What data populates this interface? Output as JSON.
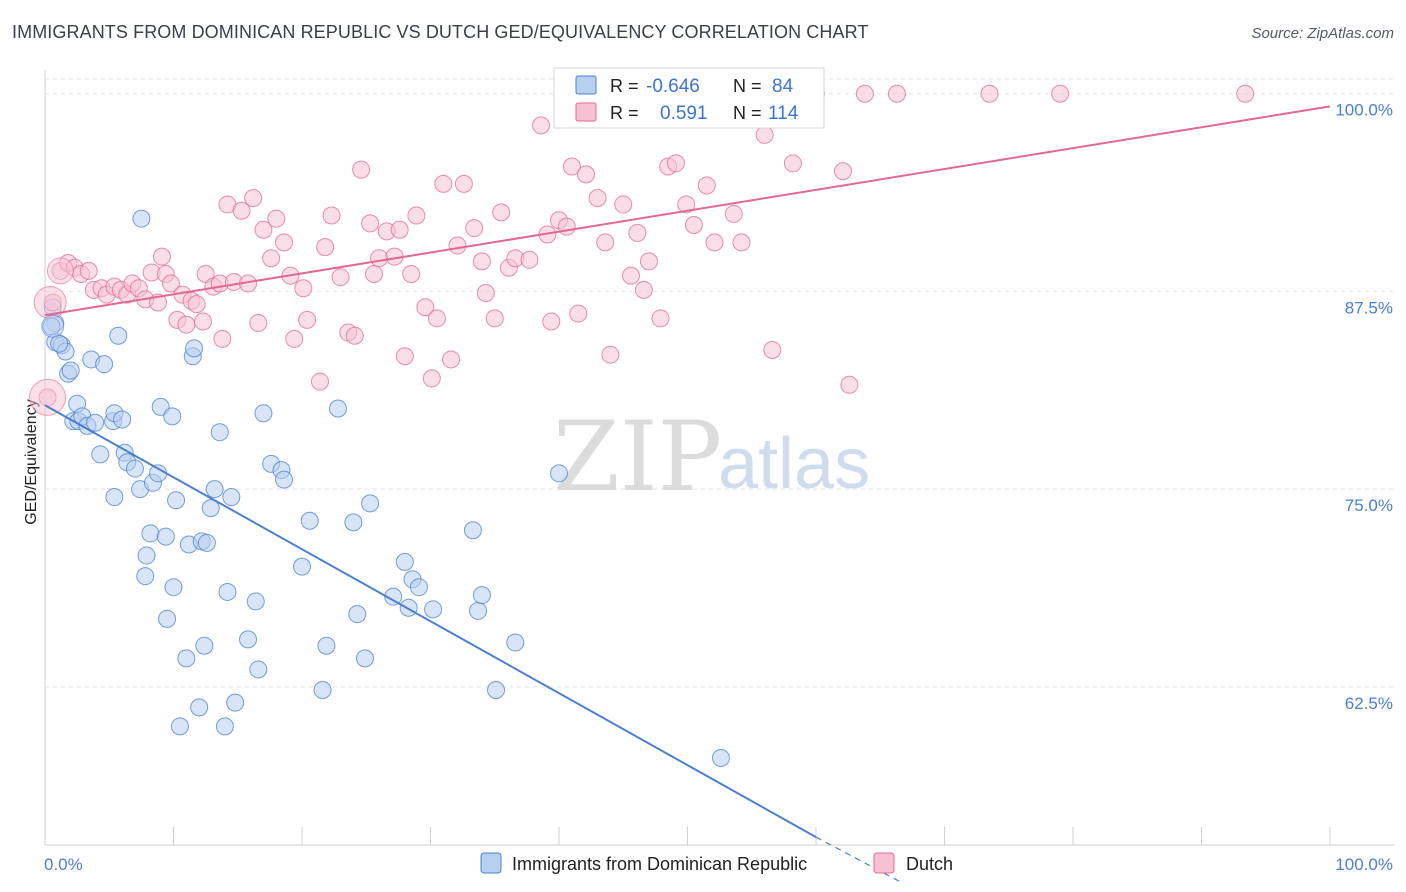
{
  "title": "IMMIGRANTS FROM DOMINICAN REPUBLIC VS DUTCH GED/EQUIVALENCY CORRELATION CHART",
  "source": "Source: ZipAtlas.com",
  "watermark": {
    "zip": "ZIP",
    "atlas": "atlas"
  },
  "colors": {
    "blue": "#4a7fd1",
    "blue_fill": "#b8d0f0",
    "pink": "#e2698f",
    "pink_fill": "#f6c2d3",
    "grid": "#e4e4e4"
  },
  "chart_data": {
    "type": "scatter",
    "ylabel": "GED/Equivalency",
    "xlabel": "",
    "xlim": [
      0,
      100
    ],
    "ylim": [
      52.5,
      101.5
    ],
    "x_tick_labels": [
      {
        "value": 0,
        "label": "0.0%"
      },
      {
        "value": 100,
        "label": "100.0%"
      }
    ],
    "y_ticks": [
      {
        "value": 62.5,
        "label": "62.5%"
      },
      {
        "value": 75.0,
        "label": "75.0%"
      },
      {
        "value": 87.5,
        "label": "87.5%"
      },
      {
        "value": 100.0,
        "label": "100.0%"
      }
    ],
    "grid": true,
    "legend_placement": "bottom",
    "stats": [
      {
        "r_label": "R =",
        "r": "-0.646",
        "n_label": "N =",
        "n": "84"
      },
      {
        "r_label": "R =",
        "r": "0.591",
        "n_label": "N =",
        "n": "114"
      }
    ],
    "series": [
      {
        "name": "Immigrants from Dominican Republic",
        "color": "#4a7fd1",
        "trend": {
          "x0": 0,
          "y0": 80.3,
          "x1": 60,
          "y1": 53.0,
          "dashed_to_x": 66.5,
          "dashed_to_y": 50.2
        },
        "points": [
          [
            0.6,
            86.5
          ],
          [
            0.8,
            85.5
          ],
          [
            0.8,
            84.3
          ],
          [
            1.3,
            84.1
          ],
          [
            1.6,
            83.7
          ],
          [
            1.8,
            82.3
          ],
          [
            2.0,
            82.5
          ],
          [
            2.2,
            79.3
          ],
          [
            2.5,
            80.4
          ],
          [
            2.6,
            79.3
          ],
          [
            2.9,
            79.6
          ],
          [
            3.3,
            79.0
          ],
          [
            3.6,
            83.2
          ],
          [
            3.9,
            79.2
          ],
          [
            4.3,
            77.2
          ],
          [
            4.6,
            82.9
          ],
          [
            5.3,
            79.3
          ],
          [
            5.4,
            79.8
          ],
          [
            5.4,
            74.5
          ],
          [
            5.7,
            84.7
          ],
          [
            6.0,
            79.4
          ],
          [
            6.2,
            77.3
          ],
          [
            6.4,
            76.7
          ],
          [
            7.0,
            76.3
          ],
          [
            7.4,
            75.0
          ],
          [
            7.5,
            92.1
          ],
          [
            7.8,
            69.5
          ],
          [
            7.9,
            70.8
          ],
          [
            8.2,
            72.2
          ],
          [
            8.4,
            75.4
          ],
          [
            8.8,
            76.0
          ],
          [
            9.0,
            80.2
          ],
          [
            9.4,
            72.0
          ],
          [
            9.5,
            66.8
          ],
          [
            9.9,
            79.6
          ],
          [
            10.0,
            68.8
          ],
          [
            10.2,
            74.3
          ],
          [
            10.5,
            60.0
          ],
          [
            11.0,
            64.3
          ],
          [
            11.2,
            71.5
          ],
          [
            11.5,
            83.4
          ],
          [
            11.6,
            83.9
          ],
          [
            12.0,
            61.2
          ],
          [
            12.2,
            71.7
          ],
          [
            12.4,
            65.1
          ],
          [
            12.6,
            71.6
          ],
          [
            12.9,
            73.8
          ],
          [
            13.2,
            75.0
          ],
          [
            13.6,
            78.6
          ],
          [
            14.0,
            60.0
          ],
          [
            14.2,
            68.5
          ],
          [
            14.5,
            74.5
          ],
          [
            14.8,
            61.5
          ],
          [
            15.8,
            65.5
          ],
          [
            16.4,
            67.9
          ],
          [
            16.6,
            63.6
          ],
          [
            17.0,
            79.8
          ],
          [
            17.6,
            76.6
          ],
          [
            18.4,
            76.2
          ],
          [
            18.6,
            75.6
          ],
          [
            20.0,
            70.1
          ],
          [
            20.6,
            73.0
          ],
          [
            21.6,
            62.3
          ],
          [
            21.9,
            65.1
          ],
          [
            22.8,
            80.1
          ],
          [
            24.3,
            67.1
          ],
          [
            24.9,
            64.3
          ],
          [
            25.3,
            74.1
          ],
          [
            24.0,
            72.9
          ],
          [
            27.1,
            68.2
          ],
          [
            28.0,
            70.4
          ],
          [
            28.3,
            67.5
          ],
          [
            28.6,
            69.3
          ],
          [
            29.1,
            68.8
          ],
          [
            30.2,
            67.4
          ],
          [
            33.3,
            72.4
          ],
          [
            33.7,
            67.3
          ],
          [
            34.0,
            68.3
          ],
          [
            35.1,
            62.3
          ],
          [
            36.6,
            65.3
          ],
          [
            40.0,
            76.0
          ],
          [
            52.6,
            58.0
          ],
          [
            0.5,
            85.3
          ],
          [
            1.1,
            84.2
          ]
        ]
      },
      {
        "name": "Dutch",
        "color": "#e2698f",
        "trend": {
          "x0": 0,
          "y0": 86.0,
          "x1": 100,
          "y1": 99.2
        },
        "points": [
          [
            0.2,
            80.8
          ],
          [
            0.6,
            86.8
          ],
          [
            1.2,
            88.8
          ],
          [
            1.8,
            89.3
          ],
          [
            2.3,
            89.0
          ],
          [
            2.8,
            88.6
          ],
          [
            3.4,
            88.8
          ],
          [
            3.8,
            87.6
          ],
          [
            4.4,
            87.7
          ],
          [
            4.8,
            87.3
          ],
          [
            5.4,
            87.8
          ],
          [
            5.9,
            87.6
          ],
          [
            6.4,
            87.3
          ],
          [
            6.8,
            88.0
          ],
          [
            7.3,
            87.7
          ],
          [
            7.8,
            87.0
          ],
          [
            8.3,
            88.7
          ],
          [
            8.8,
            86.8
          ],
          [
            9.1,
            89.7
          ],
          [
            9.4,
            88.6
          ],
          [
            9.8,
            88.0
          ],
          [
            10.3,
            85.7
          ],
          [
            10.7,
            87.3
          ],
          [
            11.0,
            85.4
          ],
          [
            11.4,
            86.9
          ],
          [
            11.8,
            86.7
          ],
          [
            12.3,
            85.6
          ],
          [
            12.5,
            88.6
          ],
          [
            13.1,
            87.8
          ],
          [
            13.6,
            88.0
          ],
          [
            13.8,
            84.5
          ],
          [
            14.2,
            93.0
          ],
          [
            14.7,
            88.1
          ],
          [
            15.3,
            92.6
          ],
          [
            15.8,
            88.0
          ],
          [
            16.2,
            93.4
          ],
          [
            16.6,
            85.5
          ],
          [
            17.0,
            91.4
          ],
          [
            17.6,
            89.6
          ],
          [
            18.0,
            92.1
          ],
          [
            18.6,
            90.6
          ],
          [
            19.1,
            88.5
          ],
          [
            19.4,
            84.5
          ],
          [
            20.1,
            87.7
          ],
          [
            20.4,
            85.7
          ],
          [
            21.4,
            81.8
          ],
          [
            21.8,
            90.3
          ],
          [
            22.3,
            92.3
          ],
          [
            23.0,
            88.4
          ],
          [
            23.6,
            84.9
          ],
          [
            24.1,
            84.7
          ],
          [
            24.6,
            95.2
          ],
          [
            25.3,
            91.8
          ],
          [
            25.6,
            88.6
          ],
          [
            26.0,
            89.6
          ],
          [
            26.6,
            91.3
          ],
          [
            27.2,
            89.7
          ],
          [
            27.6,
            91.4
          ],
          [
            28.0,
            83.4
          ],
          [
            28.5,
            88.6
          ],
          [
            28.9,
            92.3
          ],
          [
            29.6,
            86.5
          ],
          [
            30.1,
            82.0
          ],
          [
            30.5,
            85.8
          ],
          [
            31.0,
            94.3
          ],
          [
            31.6,
            83.2
          ],
          [
            32.1,
            90.4
          ],
          [
            32.6,
            94.3
          ],
          [
            33.4,
            91.5
          ],
          [
            34.0,
            89.4
          ],
          [
            34.3,
            87.4
          ],
          [
            35.0,
            85.8
          ],
          [
            35.5,
            92.5
          ],
          [
            36.1,
            89.0
          ],
          [
            36.6,
            89.6
          ],
          [
            37.7,
            89.5
          ],
          [
            38.6,
            98.0
          ],
          [
            39.1,
            91.1
          ],
          [
            39.4,
            85.6
          ],
          [
            40.0,
            92.0
          ],
          [
            40.6,
            91.6
          ],
          [
            41.0,
            95.4
          ],
          [
            41.5,
            86.1
          ],
          [
            42.1,
            94.9
          ],
          [
            43.0,
            93.4
          ],
          [
            43.6,
            90.6
          ],
          [
            44.0,
            83.5
          ],
          [
            45.0,
            93.0
          ],
          [
            45.6,
            88.5
          ],
          [
            46.1,
            91.2
          ],
          [
            46.6,
            87.6
          ],
          [
            47.0,
            89.4
          ],
          [
            47.9,
            85.8
          ],
          [
            48.5,
            95.4
          ],
          [
            49.1,
            95.6
          ],
          [
            49.9,
            93.0
          ],
          [
            50.5,
            91.7
          ],
          [
            51.0,
            100.0
          ],
          [
            51.5,
            94.2
          ],
          [
            52.1,
            90.6
          ],
          [
            53.0,
            98.8
          ],
          [
            53.6,
            92.4
          ],
          [
            54.2,
            90.6
          ],
          [
            56.0,
            97.4
          ],
          [
            56.6,
            83.8
          ],
          [
            58.2,
            95.6
          ],
          [
            60.0,
            100.0
          ],
          [
            62.1,
            95.1
          ],
          [
            62.6,
            81.6
          ],
          [
            63.8,
            100.0
          ],
          [
            66.3,
            100.0
          ],
          [
            73.5,
            100.0
          ],
          [
            79.0,
            100.0
          ],
          [
            93.4,
            100.0
          ]
        ]
      }
    ]
  }
}
